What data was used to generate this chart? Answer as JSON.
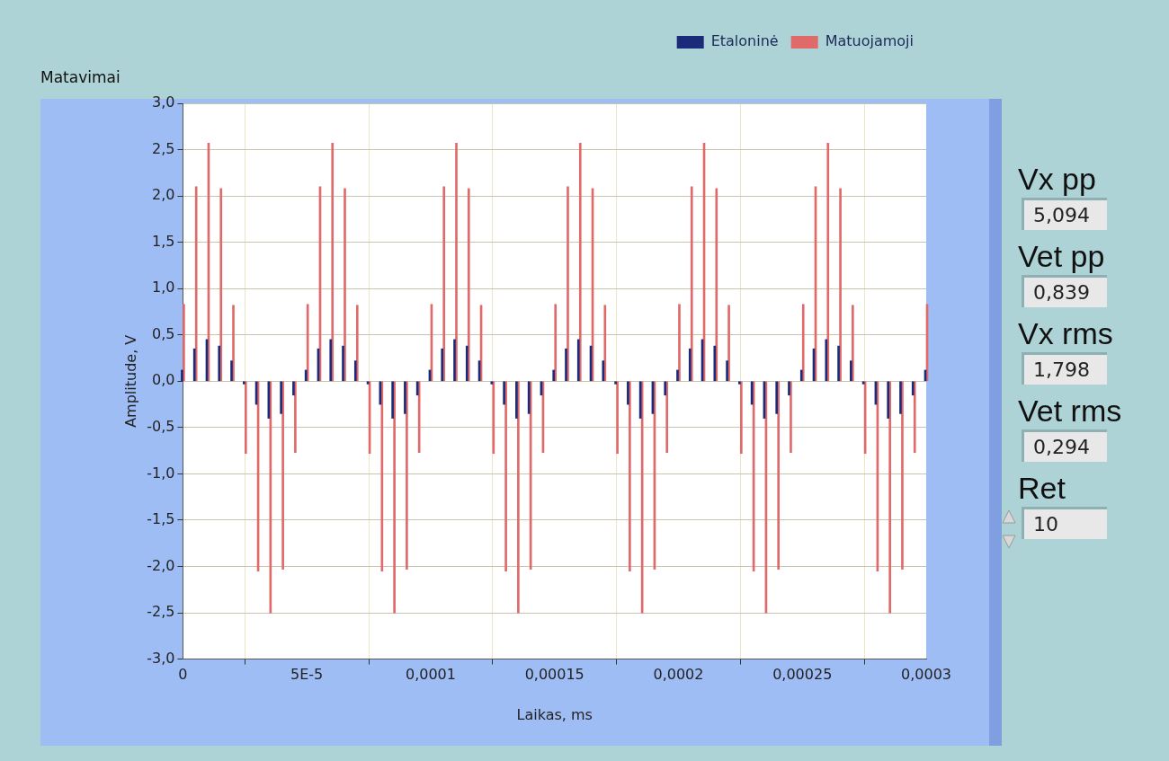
{
  "chart_data": {
    "type": "bar",
    "title": "Matavimai",
    "xlabel": "Laikas, ms",
    "ylabel": "Amplitude, V",
    "x": [
      0,
      5e-06,
      1e-05,
      1.5e-05,
      2e-05,
      2.5e-05,
      3e-05,
      3.5e-05,
      4e-05,
      4.5e-05,
      5e-05,
      5.5e-05,
      6e-05,
      6.5e-05,
      7e-05,
      7.5e-05,
      8e-05,
      8.5e-05,
      9e-05,
      9.5e-05,
      0.0001,
      0.000105,
      0.00011,
      0.000115,
      0.00012,
      0.000125,
      0.00013,
      0.000135,
      0.00014,
      0.000145,
      0.00015,
      0.000155,
      0.00016,
      0.000165,
      0.00017,
      0.000175,
      0.00018,
      0.000185,
      0.00019,
      0.000195,
      0.0002,
      0.000205,
      0.00021,
      0.000215,
      0.00022,
      0.000225,
      0.00023,
      0.000235,
      0.00024,
      0.000245,
      0.00025,
      0.000255,
      0.00026,
      0.000265,
      0.00027,
      0.000275,
      0.00028,
      0.000285,
      0.00029,
      0.000295,
      0.0003
    ],
    "series": [
      {
        "name": "Etaloninė",
        "color": "#1c2a7a",
        "values": [
          0.12,
          0.35,
          0.45,
          0.38,
          0.22,
          -0.03,
          -0.25,
          -0.4,
          -0.35,
          -0.15,
          0.12,
          0.35,
          0.45,
          0.38,
          0.22,
          -0.03,
          -0.25,
          -0.4,
          -0.35,
          -0.15,
          0.12,
          0.35,
          0.45,
          0.38,
          0.22,
          -0.03,
          -0.25,
          -0.4,
          -0.35,
          -0.15,
          0.12,
          0.35,
          0.45,
          0.38,
          0.22,
          -0.03,
          -0.25,
          -0.4,
          -0.35,
          -0.15,
          0.12,
          0.35,
          0.45,
          0.38,
          0.22,
          -0.03,
          -0.25,
          -0.4,
          -0.35,
          -0.15,
          0.12,
          0.35,
          0.45,
          0.38,
          0.22,
          -0.03,
          -0.25,
          -0.4,
          -0.35,
          -0.15,
          0.12
        ]
      },
      {
        "name": "Matuojamoji",
        "color": "#e06a6a",
        "values": [
          0.83,
          2.1,
          2.57,
          2.08,
          0.82,
          -0.78,
          -2.05,
          -2.5,
          -2.03,
          -0.77,
          0.83,
          2.1,
          2.57,
          2.08,
          0.82,
          -0.78,
          -2.05,
          -2.5,
          -2.03,
          -0.77,
          0.83,
          2.1,
          2.57,
          2.08,
          0.82,
          -0.78,
          -2.05,
          -2.5,
          -2.03,
          -0.77,
          0.83,
          2.1,
          2.57,
          2.08,
          0.82,
          -0.78,
          -2.05,
          -2.5,
          -2.03,
          -0.77,
          0.83,
          2.1,
          2.57,
          2.08,
          0.82,
          -0.78,
          -2.05,
          -2.5,
          -2.03,
          -0.77,
          0.83,
          2.1,
          2.57,
          2.08,
          0.82,
          -0.78,
          -2.05,
          -2.5,
          -2.03,
          -0.77,
          0.83
        ]
      }
    ],
    "xlim": [
      0,
      0.0003
    ],
    "xticks": [
      0,
      {
        "value": 5e-05,
        "label": "5E-5"
      },
      {
        "value": 0.0001,
        "label": "0,0001"
      },
      {
        "value": 0.00015,
        "label": "0,00015"
      },
      {
        "value": 0.0002,
        "label": "0,0002"
      },
      {
        "value": 0.00025,
        "label": "0,00025"
      },
      {
        "value": 0.0003,
        "label": "0,0003"
      }
    ],
    "ylim": [
      -3,
      3
    ],
    "yticks": [
      {
        "value": -3,
        "label": "-3,0"
      },
      {
        "value": -2.5,
        "label": "-2,5"
      },
      {
        "value": -2,
        "label": "-2,0"
      },
      {
        "value": -1.5,
        "label": "-1,5"
      },
      {
        "value": -1,
        "label": "-1,0"
      },
      {
        "value": -0.5,
        "label": "-0,5"
      },
      {
        "value": 0,
        "label": "0,0"
      },
      {
        "value": 0.5,
        "label": "0,5"
      },
      {
        "value": 1,
        "label": "1,0"
      },
      {
        "value": 1.5,
        "label": "1,5"
      },
      {
        "value": 2,
        "label": "2,0"
      },
      {
        "value": 2.5,
        "label": "2,5"
      },
      {
        "value": 3,
        "label": "3,0"
      }
    ],
    "grid": true,
    "legend": "top right",
    "annotations": [
      "Vx pp",
      "5,094",
      "Vet pp",
      "0,839",
      "Vx rms",
      "1,798",
      "Vet rms",
      "0,294",
      "Ret",
      "10"
    ]
  }
}
